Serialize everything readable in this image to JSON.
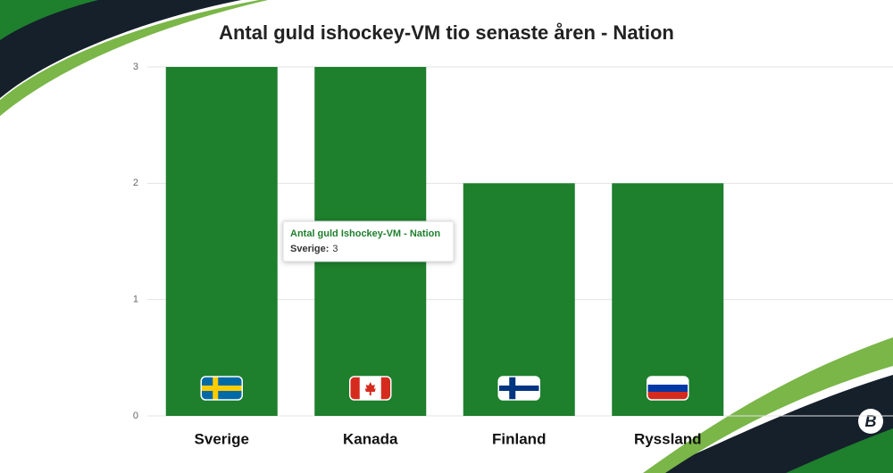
{
  "chart_data": {
    "type": "bar",
    "title": "Antal guld ishockey-VM tio senaste åren - Nation",
    "categories": [
      "Sverige",
      "Kanada",
      "Finland",
      "Ryssland"
    ],
    "values": [
      3,
      3,
      2,
      2
    ],
    "color": "#1e7f2d",
    "ylim": [
      0,
      3
    ],
    "yticks": [
      0,
      1,
      2,
      3
    ],
    "grid": true,
    "tooltip": {
      "title": "Antal guld Ishockey-VM - Nation",
      "label": "Sverige:",
      "value": 3
    }
  },
  "logo": "B"
}
